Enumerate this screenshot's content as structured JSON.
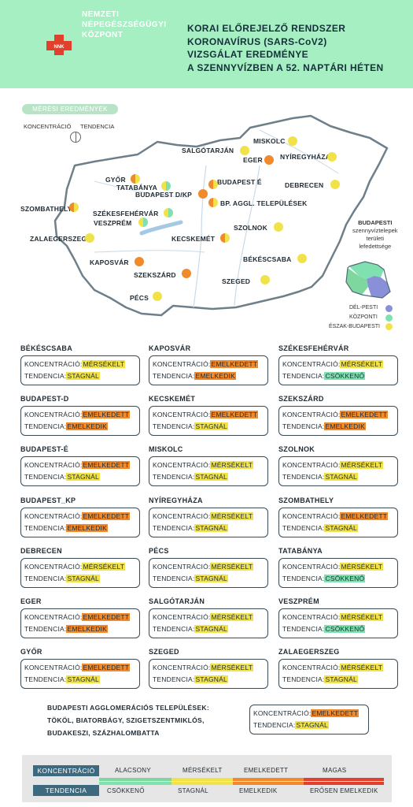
{
  "header": {
    "org_lines": [
      "NEMZETI",
      "NÉPEGÉSZSÉGÜGYI",
      "KÖZPONT"
    ],
    "logo_text": "NNK",
    "title_lines": [
      "KORAI ELŐREJELZŐ RENDSZER",
      "KORONAVÍRUS (SARS-CoV2)",
      "VIZSGÁLAT EREDMÉNYE",
      "A SZENNYVÍZBEN A 52. NAPTÁRI HÉTEN"
    ]
  },
  "colors": {
    "header_bg": "#a6efc2",
    "alacsony": "#7fd7a0",
    "mersekelt": "#f2e24a",
    "emelkedett": "#f08a2a",
    "magas": "#e0402c",
    "csokkeno": "#7fe0b0",
    "stagnal": "#f2e24a",
    "emelkedik": "#f08a2a",
    "erosen_emelkedik": "#e0402c",
    "dark": "#3d6a7f"
  },
  "map": {
    "legend_pill": "MÉRÉSI EREDMÉNYEK",
    "legend_konc": "KONCENTRÁCIÓ",
    "legend_tend": "TENDENCIA",
    "cities": {
      "miskolc": "MISKOLC",
      "salgotarjan": "SALGÓTARJÁN",
      "eger": "EGER",
      "nyiregyhaza": "NYÍREGYHÁZA",
      "gyor": "GYŐR",
      "tatabanya": "TATABÁNYA",
      "budapest_e": "BUDAPEST É",
      "budapest_dkp": "BUDAPEST D/KP",
      "bp_aggl": "BP. AGGL. TELEPÜLÉSEK",
      "debrecen": "DEBRECEN",
      "szombathely": "SZOMBATHELY",
      "szekesfehervar": "SZÉKESFEHÉRVÁR",
      "veszprem": "VESZPRÉM",
      "szolnok": "SZOLNOK",
      "zalaegerszeg": "ZALAEGERSZEG",
      "kecskemet": "KECSKEMÉT",
      "bekescsaba": "BÉKÉSCSABA",
      "kaposvar": "KAPOSVÁR",
      "szekszard": "SZEKSZÁRD",
      "szeged": "SZEGED",
      "pecs": "PÉCS"
    },
    "bp_legend": [
      "BUDAPESTI",
      "szennyvíztelepek",
      "területi",
      "lefedettsége"
    ],
    "districts": [
      "DÉL-PESTI",
      "KÖZPONTI",
      "ÉSZAK-BUDAPESTI"
    ]
  },
  "labels": {
    "konc": "KONCENTRÁCIÓ:",
    "tend": "TENDENCIA:"
  },
  "cards": [
    {
      "name": "BÉKÉSCSABA",
      "konc": "MÉRSÉKELT",
      "tend": "STAGNÁL"
    },
    {
      "name": "KAPOSVÁR",
      "konc": "EMELKEDETT",
      "tend": "EMELKEDIK"
    },
    {
      "name": "SZÉKESFEHÉRVÁR",
      "konc": "MÉRSÉKELT",
      "tend": "CSÖKKENŐ"
    },
    {
      "name": "BUDAPEST-D",
      "konc": "EMELKEDETT",
      "tend": "EMELKEDIK"
    },
    {
      "name": "KECSKEMÉT",
      "konc": "EMELKEDETT",
      "tend": "STAGNÁL"
    },
    {
      "name": "SZEKSZÁRD",
      "konc": "EMELKEDETT",
      "tend": "EMELKEDIK"
    },
    {
      "name": "BUDAPEST-É",
      "konc": "EMELKEDETT",
      "tend": "STAGNÁL"
    },
    {
      "name": "MISKOLC",
      "konc": "MÉRSÉKELT",
      "tend": "STAGNÁL"
    },
    {
      "name": "SZOLNOK",
      "konc": "MÉRSÉKELT",
      "tend": "STAGNÁL"
    },
    {
      "name": "BUDAPEST_KP",
      "konc": "EMELKEDETT",
      "tend": "EMELKEDIK"
    },
    {
      "name": "NYÍREGYHÁZA",
      "konc": "MÉRSÉKELT",
      "tend": "STAGNÁL"
    },
    {
      "name": "SZOMBATHELY",
      "konc": "EMELKEDETT",
      "tend": "STAGNÁL"
    },
    {
      "name": "DEBRECEN",
      "konc": "MÉRSÉKELT",
      "tend": "STAGNÁL"
    },
    {
      "name": "PÉCS",
      "konc": "MÉRSÉKELT",
      "tend": "STAGNÁL"
    },
    {
      "name": "TATABÁNYA",
      "konc": "MÉRSÉKELT",
      "tend": "CSÖKKENŐ"
    },
    {
      "name": "EGER",
      "konc": "EMELKEDETT",
      "tend": "EMELKEDIK"
    },
    {
      "name": "SALGÓTARJÁN",
      "konc": "MÉRSÉKELT",
      "tend": "STAGNÁL"
    },
    {
      "name": "VESZPRÉM",
      "konc": "MÉRSÉKELT",
      "tend": "CSÖKKENŐ"
    },
    {
      "name": "GYŐR",
      "konc": "EMELKEDETT",
      "tend": "STAGNÁL"
    },
    {
      "name": "SZEGED",
      "konc": "MÉRSÉKELT",
      "tend": "STAGNÁL"
    },
    {
      "name": "ZALAEGERSZEG",
      "konc": "MÉRSÉKELT",
      "tend": "STAGNÁL"
    }
  ],
  "agglo": {
    "lines": [
      "BUDAPESTI AGGLOMERÁCIÓS TELEPÜLÉSEK:",
      "TÖKÖL, BIATORBÁGY, SZIGETSZENTMIKLÓS,",
      "BUDAKESZI, SZÁZHALOMBATTA"
    ],
    "konc": "EMELKEDETT",
    "tend": "STAGNÁL"
  },
  "scale": {
    "konc_head": "KONCENTRÁCIÓ",
    "tend_head": "TENDENCIA",
    "konc_levels": [
      "ALACSONY",
      "MÉRSÉKELT",
      "EMELKEDETT",
      "MAGAS"
    ],
    "tend_levels": [
      "CSÖKKENŐ",
      "STAGNÁL",
      "EMELKEDIK",
      "ERŐSEN EMELKEDIK"
    ]
  }
}
